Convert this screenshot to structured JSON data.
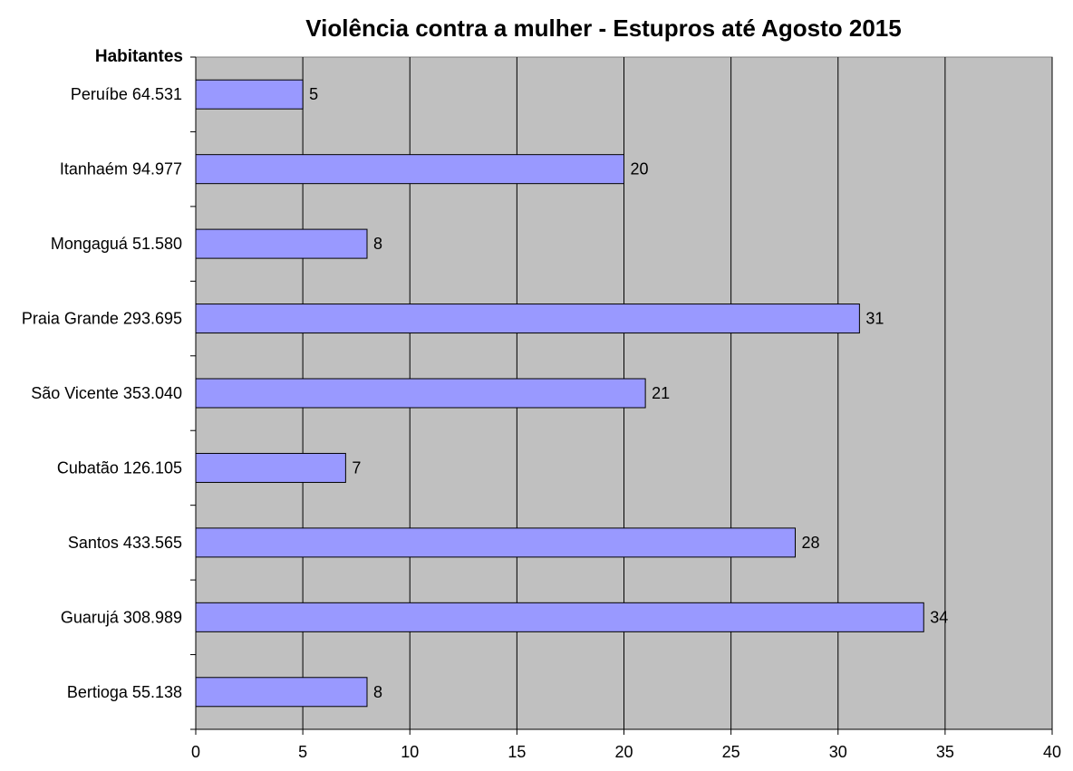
{
  "chart_data": {
    "type": "bar",
    "orientation": "horizontal",
    "title": "Violência contra a mulher - Estupros até Agosto 2015",
    "ylabel": "Habitantes",
    "xlabel": "",
    "categories": [
      "Peruíbe 64.531",
      "Itanhaém 94.977",
      "Mongaguá 51.580",
      "Praia Grande 293.695",
      "São Vicente 353.040",
      "Cubatão 126.105",
      "Santos 433.565",
      "Guarujá 308.989",
      "Bertioga 55.138"
    ],
    "values": [
      5,
      20,
      8,
      31,
      21,
      7,
      28,
      34,
      8
    ],
    "xlim": [
      0,
      40
    ],
    "xticks": [
      0,
      5,
      10,
      15,
      20,
      25,
      30,
      35,
      40
    ],
    "grid": true,
    "legend": "none",
    "data_labels": true,
    "colors": {
      "bar": "#9999ff",
      "plot_background": "#c0c0c0",
      "gridline": "#000000",
      "bar_border": "#000000"
    }
  }
}
